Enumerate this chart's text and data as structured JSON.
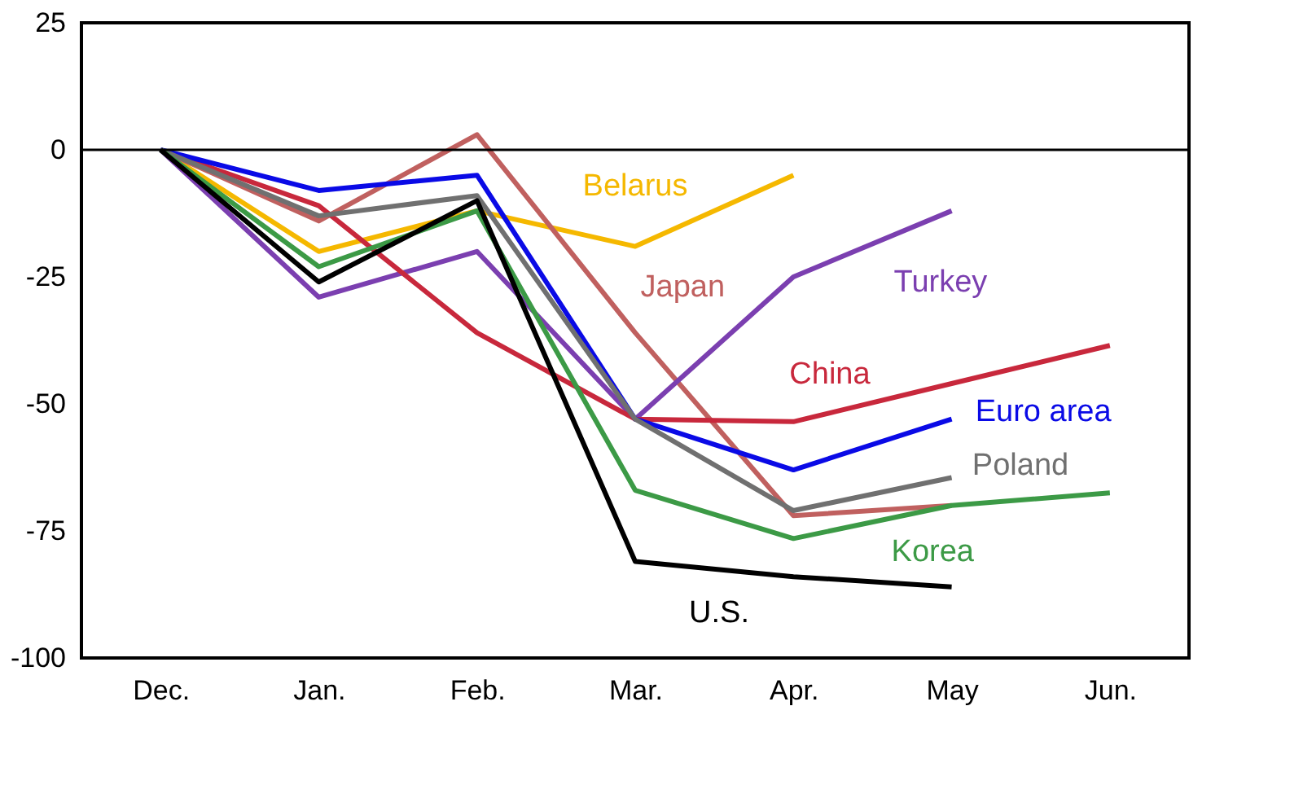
{
  "chart_data": {
    "type": "line",
    "categories": [
      "Dec.",
      "Jan.",
      "Feb.",
      "Mar.",
      "Apr.",
      "May",
      "Jun."
    ],
    "ylim": [
      -100,
      25
    ],
    "yticks": [
      -100,
      -75,
      -50,
      -25,
      0,
      25
    ],
    "grid": false,
    "marker": "none",
    "line_style": "solid",
    "ref_lines": [
      {
        "axis": "y",
        "value": 0,
        "color": "#000000"
      }
    ],
    "series": [
      {
        "name": "Belarus",
        "color": "#f5b800",
        "values": [
          0,
          -20,
          -12,
          -19,
          -5,
          null,
          null
        ]
      },
      {
        "name": "Japan",
        "color": "#c0605f",
        "values": [
          0,
          -14,
          3,
          -36,
          -72,
          -70,
          null
        ]
      },
      {
        "name": "Turkey",
        "color": "#7b3fb0",
        "values": [
          0,
          -29,
          -20,
          -53,
          -25,
          -12,
          null
        ]
      },
      {
        "name": "China",
        "color": "#c8283c",
        "values": [
          0,
          -11,
          -36,
          -53,
          -53.5,
          -46,
          -38.5
        ]
      },
      {
        "name": "Euro area",
        "color": "#0a0ae6",
        "values": [
          0,
          -8,
          -5,
          -53,
          -63,
          -53,
          null
        ]
      },
      {
        "name": "Poland",
        "color": "#707070",
        "values": [
          0,
          -13,
          -9,
          -53,
          -71,
          -64.5,
          null
        ]
      },
      {
        "name": "Korea",
        "color": "#3c9a46",
        "values": [
          0,
          -23,
          -12,
          -67,
          -76.5,
          -70,
          -67.5
        ]
      },
      {
        "name": "U.S.",
        "color": "#000000",
        "values": [
          0,
          -26,
          -10,
          -81,
          -84,
          -86,
          null
        ]
      }
    ]
  }
}
